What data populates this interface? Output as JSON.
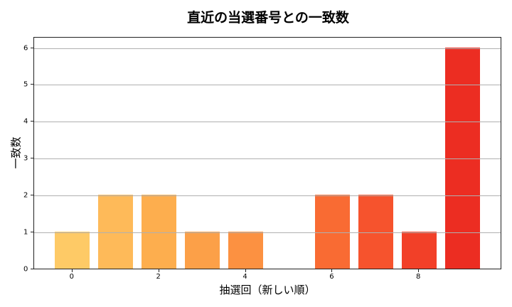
{
  "chart_data": {
    "type": "bar",
    "title": "直近の当選番号との一致数",
    "xlabel": "抽選回（新しい順）",
    "ylabel": "一致数",
    "categories": [
      0,
      1,
      2,
      3,
      4,
      5,
      6,
      7,
      8,
      9
    ],
    "values": [
      1,
      2,
      2,
      1,
      1,
      0,
      2,
      2,
      1,
      6
    ],
    "colors": [
      "#FECA66",
      "#FEBA59",
      "#FDAE4E",
      "#FCA048",
      "#FC9141",
      "#FA7F3B",
      "#F96B33",
      "#F6532D",
      "#F24028",
      "#EC2D22"
    ],
    "xticks": [
      0,
      2,
      4,
      6,
      8
    ],
    "yticks": [
      0,
      1,
      2,
      3,
      4,
      5,
      6
    ],
    "xlim": [
      -0.9,
      9.9
    ],
    "ylim": [
      0,
      6.3
    ],
    "grid": "y",
    "legend": null
  }
}
